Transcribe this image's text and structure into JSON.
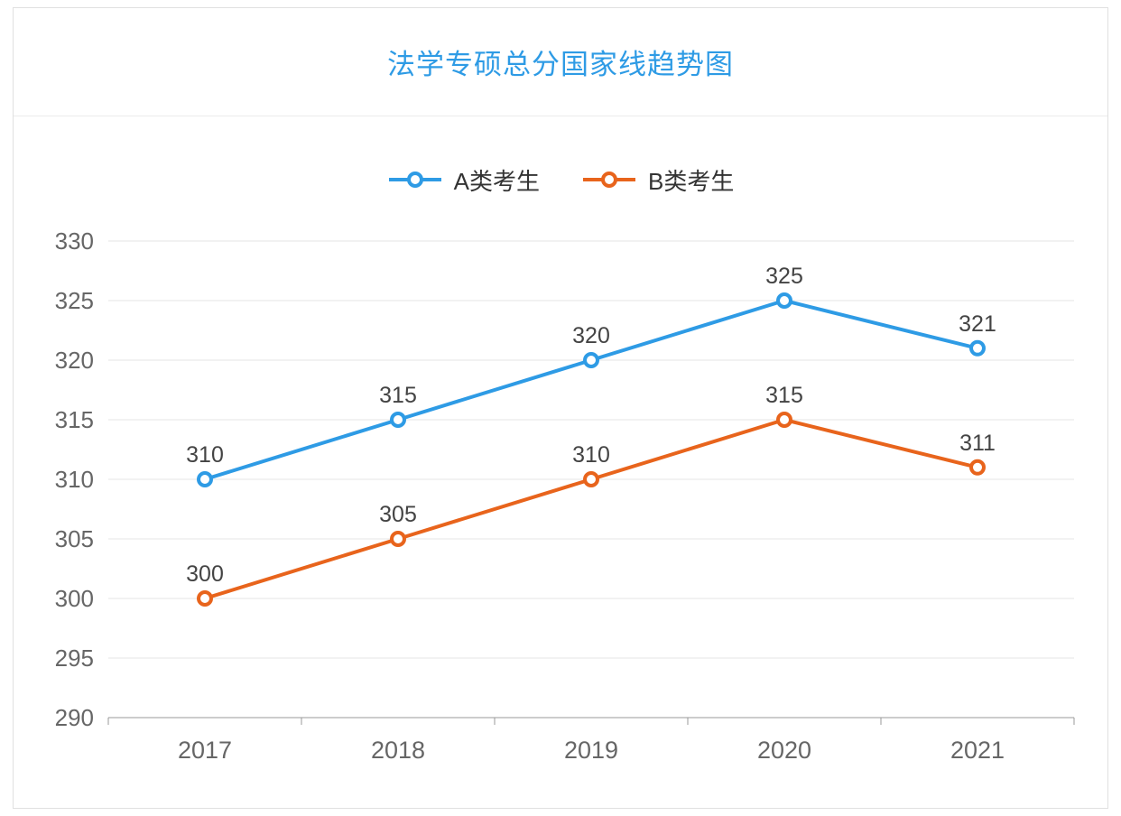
{
  "chart_data": {
    "type": "line",
    "title": "法学专硕总分国家线趋势图",
    "categories": [
      "2017",
      "2018",
      "2019",
      "2020",
      "2021"
    ],
    "series": [
      {
        "name": "A类考生",
        "color": "#2e9be5",
        "values": [
          310,
          315,
          320,
          325,
          321
        ]
      },
      {
        "name": "B类考生",
        "color": "#e8641c",
        "values": [
          300,
          305,
          310,
          315,
          311
        ]
      }
    ],
    "ylim": [
      290,
      330
    ],
    "ytick_step": 5,
    "grid": true,
    "legend_position": "top",
    "colors": {
      "title": "#2e9be5",
      "gridline": "#e6e6e6",
      "axis_line": "#999999",
      "tick_label": "#666666",
      "data_label": "#444444"
    }
  }
}
